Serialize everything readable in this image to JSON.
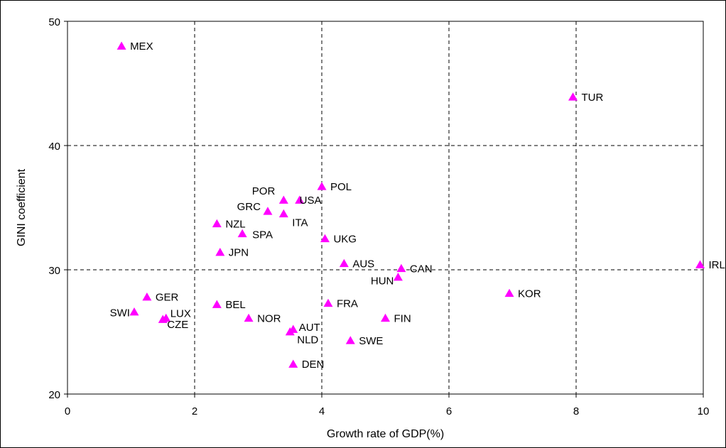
{
  "chart_data": {
    "type": "scatter",
    "title": "",
    "xlabel": "Growth rate of GDP(%)",
    "ylabel": "GINI coefficient",
    "xlim": [
      0,
      10
    ],
    "ylim": [
      20,
      50
    ],
    "xticks": [
      0,
      2,
      4,
      6,
      8,
      10
    ],
    "yticks": [
      20,
      30,
      40,
      50
    ],
    "grid": true,
    "marker": "triangle",
    "marker_color": "#ff00ff",
    "points": [
      {
        "label": "MEX",
        "x": 0.85,
        "y": 48.0
      },
      {
        "label": "TUR",
        "x": 7.95,
        "y": 43.9
      },
      {
        "label": "POL",
        "x": 4.0,
        "y": 36.7
      },
      {
        "label": "POR",
        "x": 3.4,
        "y": 35.6
      },
      {
        "label": "USA",
        "x": 3.65,
        "y": 35.6
      },
      {
        "label": "GRC",
        "x": 3.15,
        "y": 34.7
      },
      {
        "label": "ITA",
        "x": 3.4,
        "y": 34.5
      },
      {
        "label": "NZL",
        "x": 2.35,
        "y": 33.7
      },
      {
        "label": "SPA",
        "x": 2.75,
        "y": 32.9
      },
      {
        "label": "UKG",
        "x": 4.05,
        "y": 32.5
      },
      {
        "label": "JPN",
        "x": 2.4,
        "y": 31.4
      },
      {
        "label": "AUS",
        "x": 4.35,
        "y": 30.5
      },
      {
        "label": "CAN",
        "x": 5.25,
        "y": 30.1
      },
      {
        "label": "HUN",
        "x": 5.2,
        "y": 29.4
      },
      {
        "label": "IRL",
        "x": 9.95,
        "y": 30.4
      },
      {
        "label": "KOR",
        "x": 6.95,
        "y": 28.1
      },
      {
        "label": "GER",
        "x": 1.25,
        "y": 27.8
      },
      {
        "label": "BEL",
        "x": 2.35,
        "y": 27.2
      },
      {
        "label": "FRA",
        "x": 4.1,
        "y": 27.3
      },
      {
        "label": "SWI",
        "x": 1.05,
        "y": 26.6
      },
      {
        "label": "LUX",
        "x": 1.55,
        "y": 26.1
      },
      {
        "label": "CZE",
        "x": 1.5,
        "y": 26.0
      },
      {
        "label": "NOR",
        "x": 2.85,
        "y": 26.1
      },
      {
        "label": "FIN",
        "x": 5.0,
        "y": 26.1
      },
      {
        "label": "AUT",
        "x": 3.55,
        "y": 25.2
      },
      {
        "label": "NLD",
        "x": 3.5,
        "y": 25.0
      },
      {
        "label": "SWE",
        "x": 4.45,
        "y": 24.3
      },
      {
        "label": "DEN",
        "x": 3.55,
        "y": 22.4
      }
    ]
  }
}
